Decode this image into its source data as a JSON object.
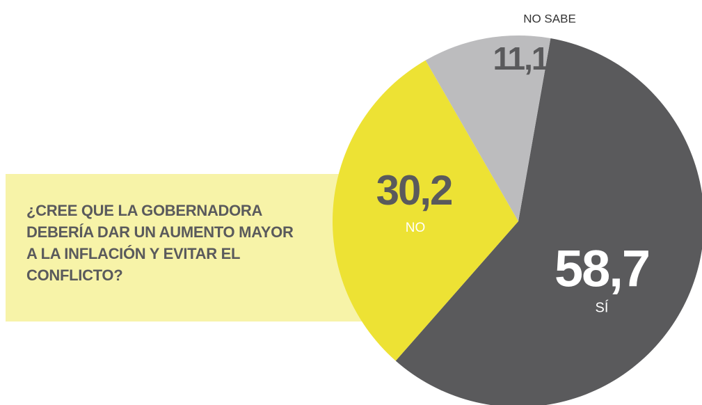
{
  "chart_data": {
    "type": "pie",
    "title": "¿CREE QUE LA GOBERNADORA DEBERÍA DAR UN AUMENTO MAYOR A LA INFLACIÓN Y EVITAR EL CONFLICTO?",
    "categories": [
      "SÍ",
      "NO",
      "NO SABE"
    ],
    "values": [
      58.7,
      30.2,
      11.1
    ],
    "value_labels": [
      "58,7",
      "30,2",
      "11,1"
    ],
    "colors": [
      "#5a5a5c",
      "#ede234",
      "#bcbcbe"
    ]
  }
}
